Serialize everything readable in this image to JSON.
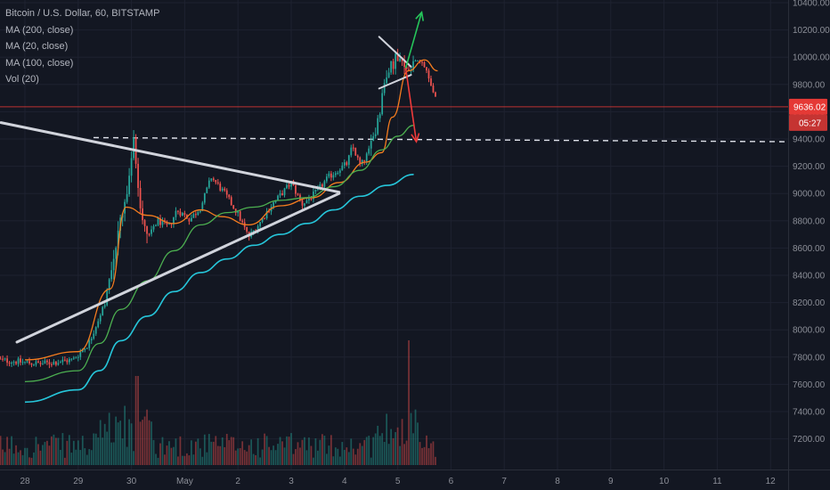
{
  "legend": {
    "symbol": "Bitcoin / U.S. Dollar, 60, BITSTAMP",
    "ma200": "MA (200, close)",
    "ma20": "MA (20, close)",
    "ma100": "MA (100, close)",
    "vol": "Vol (20)"
  },
  "colors": {
    "background": "#131722",
    "up": "#26a69a",
    "down": "#ef5350",
    "ma20": "#f57c1f",
    "ma100": "#4caf50",
    "ma200": "#26c6da",
    "trendline": "#d1d4dc",
    "arrow_up": "#26c65b",
    "arrow_down": "#ef3b3b",
    "price_line": "#e53935",
    "badge": "#e53935"
  },
  "price_badge": {
    "price": "9636.02",
    "countdown": "05:27"
  },
  "chart_data": {
    "type": "candlestick",
    "ylim": [
      7100,
      10400
    ],
    "yticks": [
      "10400.00",
      "10200.00",
      "10000.00",
      "9800.00",
      "9600.00",
      "9400.00",
      "9200.00",
      "9000.00",
      "8800.00",
      "8600.00",
      "8400.00",
      "8200.00",
      "8000.00",
      "7800.00",
      "7600.00",
      "7400.00",
      "7200.00"
    ],
    "xticks": [
      "28",
      "29",
      "30",
      "May",
      "2",
      "3",
      "4",
      "5",
      "6",
      "7",
      "8",
      "9",
      "10",
      "11",
      "12"
    ],
    "last_price": 9636.02,
    "support_level": 9400,
    "ma_series": [
      {
        "id": "ma20",
        "points": [
          [
            0,
            7780
          ],
          [
            1,
            7840
          ],
          [
            1.6,
            8300
          ],
          [
            1.9,
            8900
          ],
          [
            2.3,
            8840
          ],
          [
            2.8,
            8780
          ],
          [
            3.3,
            8880
          ],
          [
            3.7,
            8830
          ],
          [
            4.2,
            8770
          ],
          [
            4.8,
            8910
          ],
          [
            5.4,
            8970
          ],
          [
            5.9,
            9080
          ],
          [
            6.4,
            9230
          ],
          [
            6.7,
            9300
          ],
          [
            6.9,
            9560
          ],
          [
            7.2,
            9900
          ],
          [
            7.5,
            9980
          ],
          [
            7.75,
            9900
          ]
        ]
      },
      {
        "id": "ma100",
        "points": [
          [
            0,
            7620
          ],
          [
            1,
            7700
          ],
          [
            1.4,
            7900
          ],
          [
            1.8,
            8150
          ],
          [
            2.3,
            8360
          ],
          [
            2.8,
            8580
          ],
          [
            3.3,
            8770
          ],
          [
            3.8,
            8860
          ],
          [
            4.3,
            8900
          ],
          [
            4.8,
            8950
          ],
          [
            5.3,
            8970
          ],
          [
            5.8,
            9050
          ],
          [
            6.3,
            9170
          ],
          [
            6.7,
            9320
          ],
          [
            7.0,
            9420
          ],
          [
            7.3,
            9500
          ]
        ]
      },
      {
        "id": "ma200",
        "points": [
          [
            0,
            7470
          ],
          [
            1,
            7560
          ],
          [
            1.4,
            7700
          ],
          [
            1.8,
            7920
          ],
          [
            2.3,
            8100
          ],
          [
            2.8,
            8280
          ],
          [
            3.3,
            8420
          ],
          [
            3.8,
            8520
          ],
          [
            4.3,
            8620
          ],
          [
            4.8,
            8700
          ],
          [
            5.3,
            8780
          ],
          [
            5.8,
            8880
          ],
          [
            6.3,
            8980
          ],
          [
            6.8,
            9060
          ],
          [
            7.3,
            9140
          ]
        ]
      }
    ],
    "trendlines": [
      {
        "id": "upper-triangle",
        "from": [
          -0.45,
          9520
        ],
        "to": [
          5.9,
          9010
        ]
      },
      {
        "id": "lower-triangle",
        "from": [
          -0.15,
          7910
        ],
        "to": [
          5.9,
          9000
        ]
      },
      {
        "id": "flag-upper",
        "from": [
          6.65,
          10150
        ],
        "to": [
          7.25,
          9930
        ]
      },
      {
        "id": "flag-lower",
        "from": [
          6.65,
          9770
        ],
        "to": [
          7.25,
          9870
        ]
      }
    ],
    "arrows": [
      {
        "id": "arrow-up",
        "from": [
          7.15,
          9920
        ],
        "to": [
          7.45,
          10330
        ]
      },
      {
        "id": "arrow-down",
        "from": [
          7.15,
          9920
        ],
        "to": [
          7.35,
          9380
        ]
      }
    ]
  }
}
